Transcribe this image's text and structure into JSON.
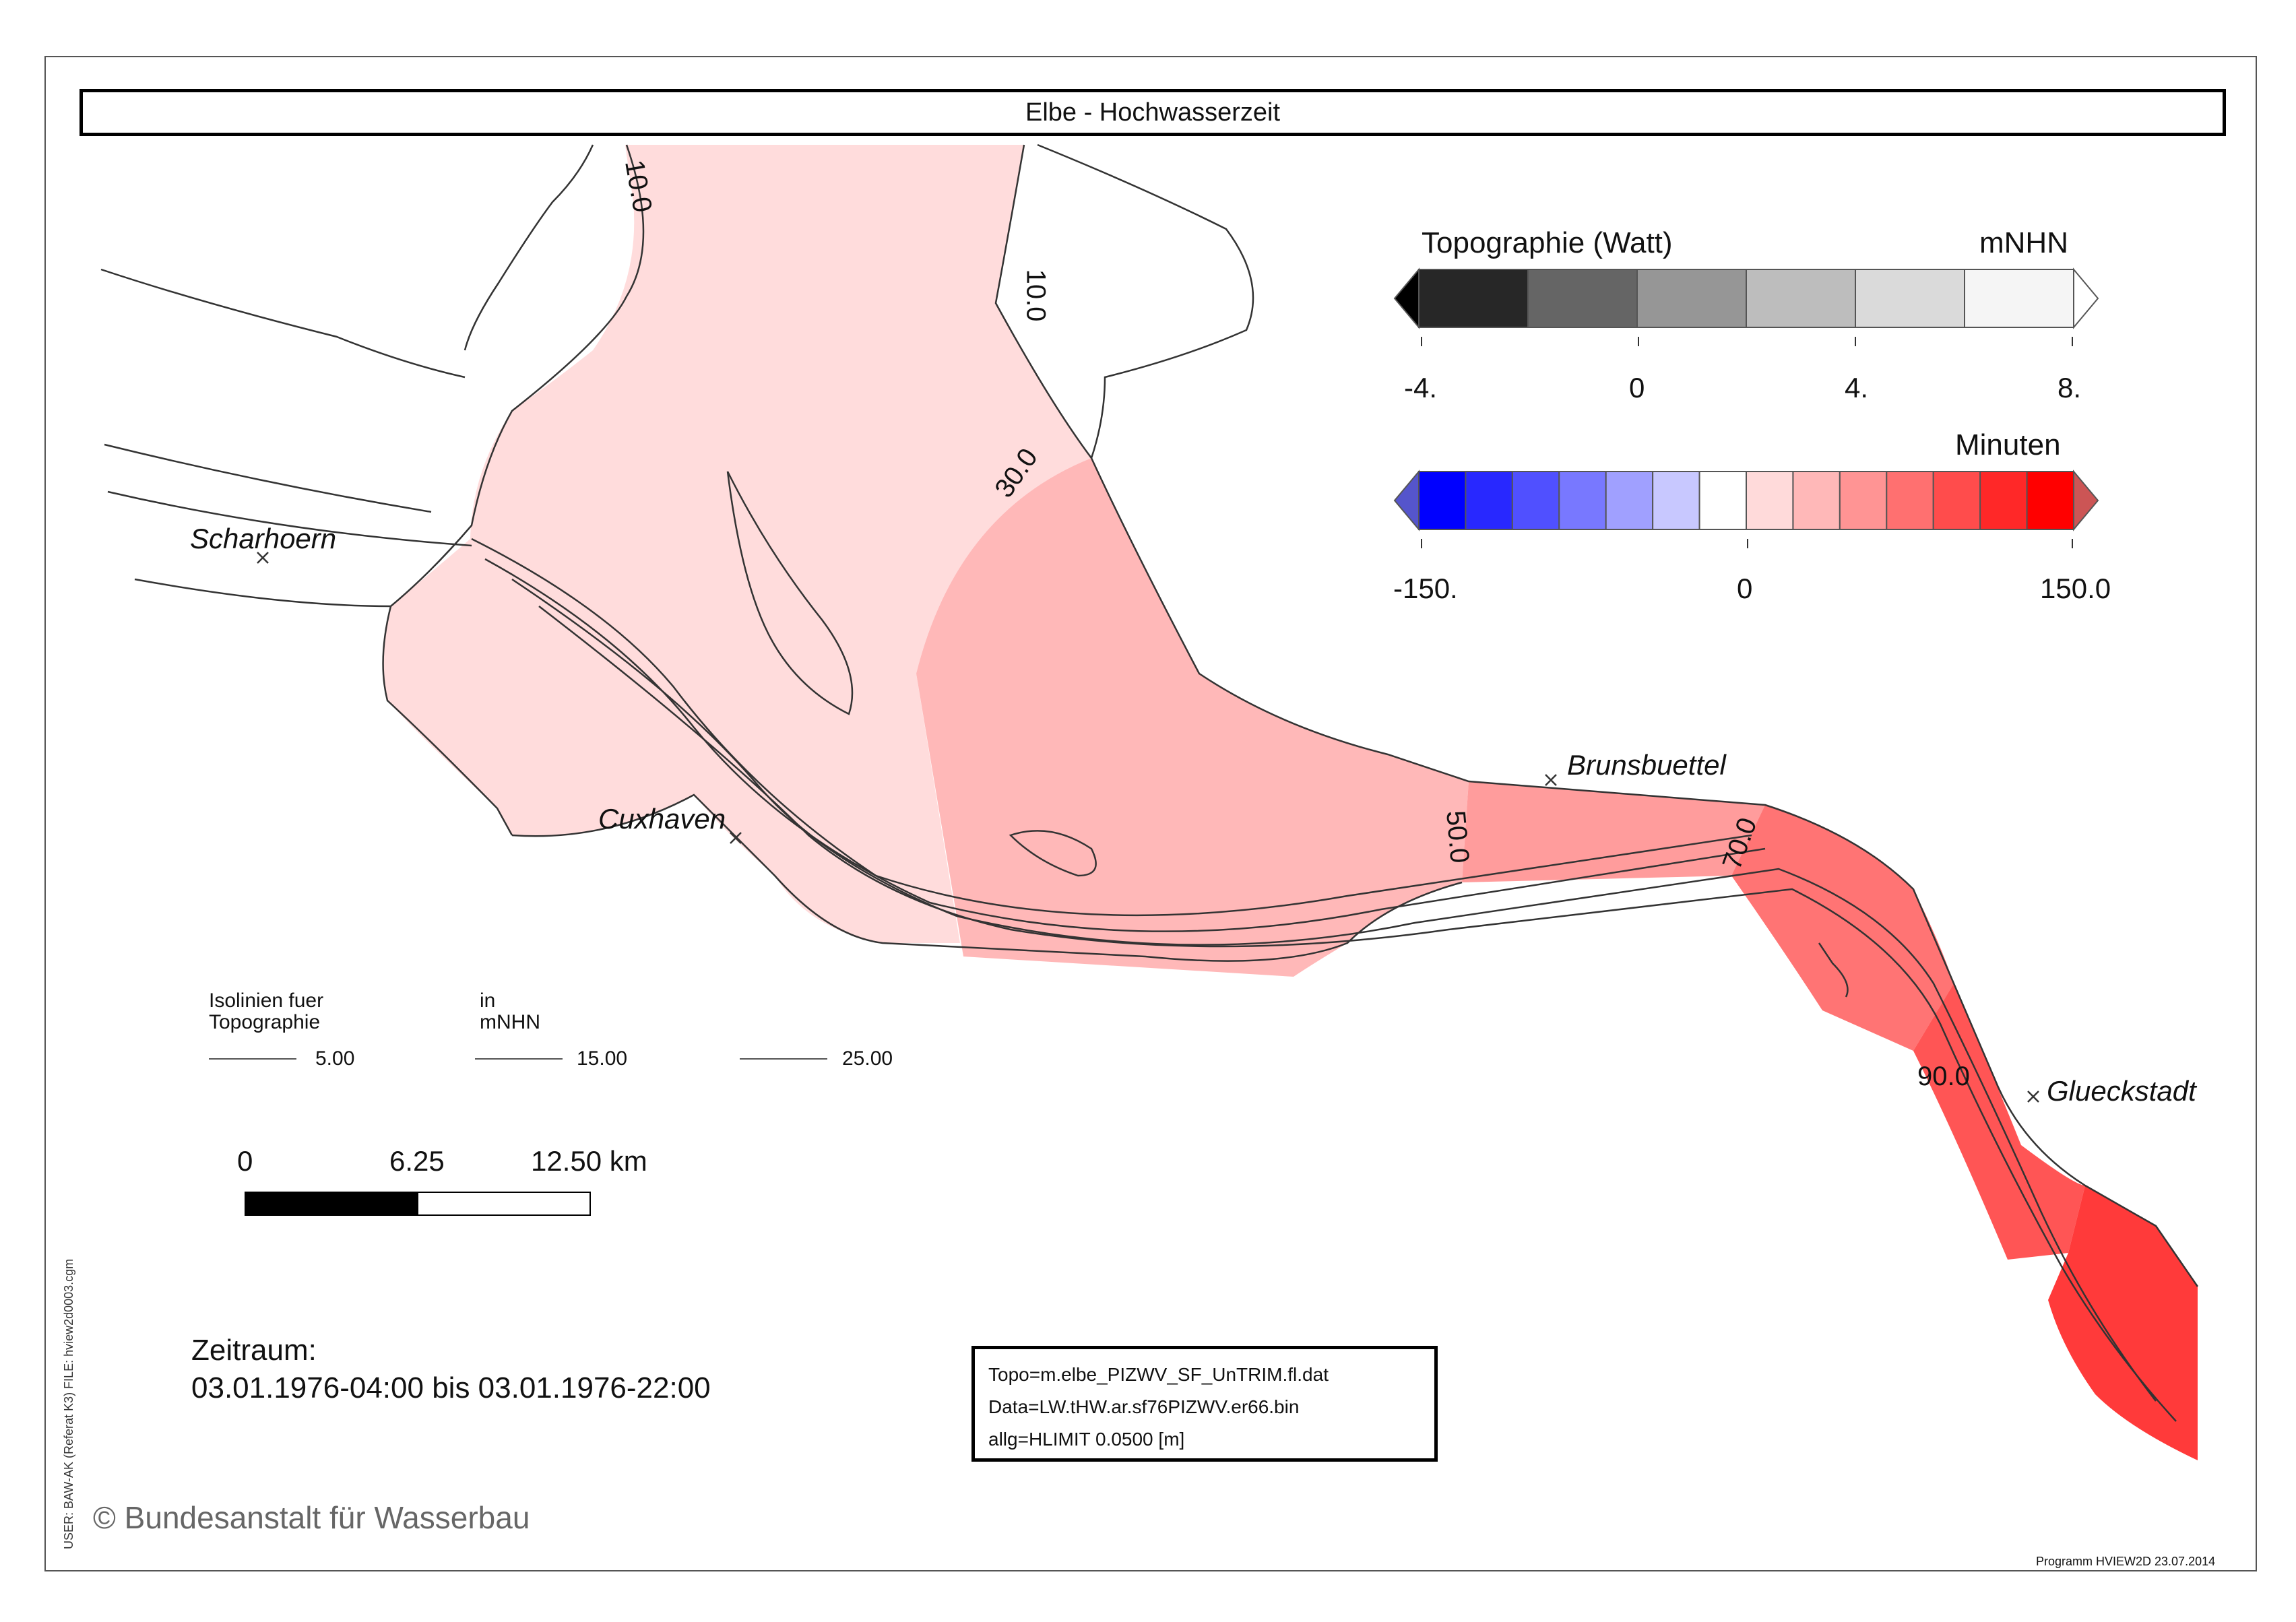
{
  "title": "Elbe - Hochwasserzeit",
  "places": {
    "scharhoern": "Scharhoern",
    "cuxhaven": "Cuxhaven",
    "brunsbuettel": "Brunsbuettel",
    "glueckstadt": "Glueckstadt"
  },
  "contour_labels": {
    "c10a": "10.0",
    "c10b": "10.0",
    "c30": "30.0",
    "c50": "50.0",
    "c70": "70.0",
    "c90": "90.0"
  },
  "topo_legend": {
    "title": "Topographie (Watt)",
    "unit": "mNHN",
    "ticks": [
      "-4.",
      "0",
      "4.",
      "8."
    ],
    "colors": [
      "#000000",
      "#272727",
      "#656565",
      "#969696",
      "#bdbdbd",
      "#dadada",
      "#f5f5f5",
      "#ffffff"
    ]
  },
  "minutes_legend": {
    "unit": "Minuten",
    "ticks": [
      "-150.",
      "0",
      "150.0"
    ],
    "colors": [
      "#5555cc",
      "#0000ff",
      "#2828ff",
      "#5050ff",
      "#7878ff",
      "#a0a0ff",
      "#c8c8ff",
      "#ffffff",
      "#ffdada",
      "#ffb8b8",
      "#ff9494",
      "#ff7070",
      "#ff4c4c",
      "#ff2828",
      "#ff0000",
      "#cc5555"
    ]
  },
  "isolines": {
    "heading1": "Isolinien fuer",
    "heading2": "Topographie",
    "unit1": "in",
    "unit2": "mNHN",
    "values": [
      "5.00",
      "15.00",
      "25.00"
    ]
  },
  "scalebar": {
    "labels": [
      "0",
      "6.25",
      "12.50 km"
    ]
  },
  "period": {
    "label": "Zeitraum:",
    "range": "03.01.1976-04:00 bis 03.01.1976-22:00"
  },
  "info": {
    "topo": "Topo=m.elbe_PIZWV_SF_UnTRIM.fl.dat",
    "data": "Data=LW.tHW.ar.sf76PIZWV.er66.bin",
    "allg": "allg=HLIMIT   0.0500 [m]"
  },
  "copyright": "© Bundesanstalt für Wasserbau",
  "side_note": "USER: BAW-AK (Referat K3)    FILE: hview2d0003.cgm",
  "footer": "Programm HVIEW2D    23.07.2014",
  "map_colors": {
    "zone10": "#ffdcdc",
    "zone30": "#ffb8b8",
    "zone50": "#ff9c9c",
    "zone70": "#ff7474",
    "zone90": "#ff5555",
    "zone110": "#ff3a3a",
    "land_line": "#333333"
  }
}
